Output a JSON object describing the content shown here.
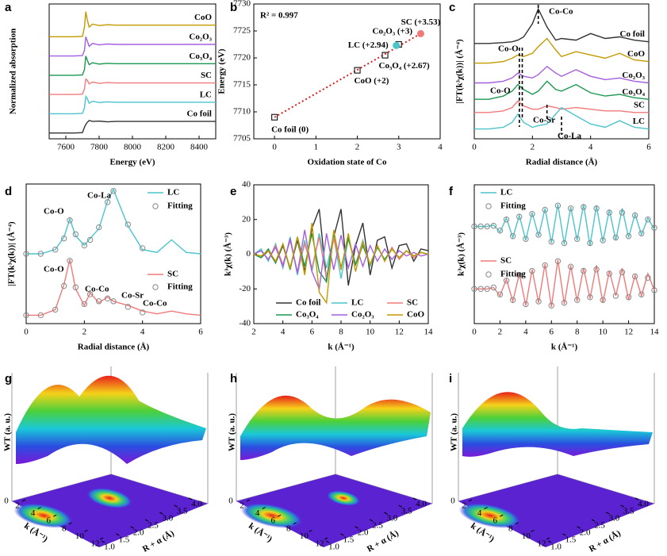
{
  "chart_data": [
    {
      "type": "line",
      "panel": "a",
      "xlabel": "Energy (eV)",
      "ylabel": "Normalized absorption",
      "xlim": [
        7500,
        8500
      ],
      "xticks": [
        7600,
        7800,
        8000,
        8200,
        8400
      ],
      "ylim": [
        0,
        7
      ],
      "legend": "inline",
      "x": [
        7500,
        7650,
        7700,
        7712,
        7720,
        7728,
        7740,
        7760,
        7800,
        7850,
        7900,
        8000,
        8100,
        8200,
        8300,
        8400,
        8500
      ],
      "series": [
        {
          "name": "CoO",
          "color": "#c49a00",
          "values": [
            5.3,
            5.3,
            5.32,
            5.8,
            6.6,
            6.2,
            5.8,
            5.95,
            5.88,
            5.92,
            5.9,
            5.9,
            5.9,
            5.9,
            5.9,
            5.9,
            5.9
          ]
        },
        {
          "name": "Co₂O₃",
          "color": "#a45ee0",
          "values": [
            4.3,
            4.3,
            4.32,
            4.6,
            5.3,
            5.1,
            4.8,
            4.95,
            4.88,
            4.92,
            4.9,
            4.9,
            4.9,
            4.9,
            4.9,
            4.9,
            4.9
          ]
        },
        {
          "name": "Co₃O₄",
          "color": "#1a9850",
          "values": [
            3.3,
            3.3,
            3.32,
            3.6,
            4.3,
            4.1,
            3.85,
            3.95,
            3.88,
            3.92,
            3.9,
            3.9,
            3.9,
            3.9,
            3.9,
            3.9,
            3.9
          ]
        },
        {
          "name": "SC",
          "color": "#f07a7a",
          "values": [
            2.3,
            2.3,
            2.32,
            2.6,
            3.1,
            3.05,
            2.85,
            2.95,
            2.88,
            2.92,
            2.9,
            2.9,
            2.9,
            2.9,
            2.9,
            2.9,
            2.9
          ]
        },
        {
          "name": "LC",
          "color": "#4cc4cc",
          "values": [
            1.3,
            1.3,
            1.32,
            1.6,
            2.2,
            2.1,
            1.85,
            1.95,
            1.88,
            1.92,
            1.9,
            1.9,
            1.9,
            1.9,
            1.9,
            1.9,
            1.9
          ]
        },
        {
          "name": "Co foil",
          "color": "#333333",
          "values": [
            0.3,
            0.3,
            0.32,
            0.6,
            0.75,
            0.85,
            0.95,
            0.9,
            0.92,
            0.88,
            0.9,
            0.9,
            0.9,
            0.9,
            0.9,
            0.9,
            0.9
          ]
        }
      ]
    },
    {
      "type": "scatter",
      "panel": "b",
      "xlabel": "Oxidation state of Co",
      "ylabel": "Energy (eV)",
      "annotation": "R² = 0.997",
      "xlim": [
        -0.5,
        4
      ],
      "xticks": [
        0,
        1,
        2,
        3,
        4
      ],
      "ylim": [
        7705,
        7730
      ],
      "yticks": [
        7705,
        7710,
        7715,
        7720,
        7725,
        7730
      ],
      "x": [
        0,
        2,
        2.67,
        3,
        2.94,
        3.53
      ],
      "values": [
        7709,
        7717.7,
        7720.5,
        7722.5,
        7722.3,
        7724.5
      ],
      "labels": [
        "Co foil (0)",
        "CoO (+2)",
        "Co₃O₄ (+2.67)",
        "Co₂O₃ (+3)",
        "LC (+2.94)",
        "SC (+3.53)"
      ],
      "colors": [
        "#222222",
        "#222222",
        "#222222",
        "#222222",
        "#4cc4cc",
        "#f07a7a"
      ],
      "markers": [
        "square",
        "square",
        "square",
        "square",
        "circle",
        "circle"
      ],
      "fit": {
        "x": [
          0,
          3.53
        ],
        "y": [
          7709,
          7724.5
        ],
        "color": "#d62020"
      }
    },
    {
      "type": "line",
      "panel": "c",
      "xlabel": "Radial distance (Å)",
      "ylabel": "|FT(k³χ(k))| (Å⁻⁴)",
      "xlim": [
        0,
        6
      ],
      "xticks": [
        0,
        2,
        4,
        6
      ],
      "ylim": [
        0,
        8.2
      ],
      "legend": "inline",
      "annotations": [
        "Co-Co",
        "Co-O",
        "Co-O",
        "Co-Sr",
        "Co-La"
      ],
      "x": [
        0,
        0.5,
        1,
        1.3,
        1.5,
        1.7,
        2,
        2.2,
        2.5,
        2.8,
        3,
        3.5,
        4,
        4.5,
        5,
        5.5,
        6
      ],
      "series": [
        {
          "name": "Co foil",
          "color": "#333333",
          "values": [
            5.8,
            5.8,
            5.85,
            5.9,
            6.0,
            6.2,
            7.0,
            7.9,
            6.8,
            6.0,
            6.1,
            6.0,
            6.4,
            6.1,
            6.2,
            6.0,
            5.9
          ]
        },
        {
          "name": "CoO",
          "color": "#c49a00",
          "values": [
            4.6,
            4.6,
            4.7,
            4.9,
            5.1,
            5.0,
            5.2,
            5.6,
            6.1,
            5.4,
            5.0,
            5.3,
            5.1,
            4.9,
            5.2,
            4.8,
            4.7
          ]
        },
        {
          "name": "Co₂O₃",
          "color": "#a45ee0",
          "values": [
            3.4,
            3.4,
            3.5,
            3.7,
            4.0,
            3.8,
            3.7,
            3.9,
            4.4,
            4.0,
            3.8,
            4.2,
            3.8,
            3.6,
            3.7,
            3.5,
            3.4
          ]
        },
        {
          "name": "Co₃O₄",
          "color": "#1a9850",
          "values": [
            2.4,
            2.4,
            2.6,
            2.9,
            3.3,
            3.0,
            2.7,
            2.9,
            3.5,
            3.0,
            2.9,
            3.3,
            2.8,
            2.6,
            2.7,
            2.5,
            2.4
          ]
        },
        {
          "name": "SC",
          "color": "#f07a7a",
          "values": [
            1.6,
            1.6,
            1.7,
            1.9,
            2.3,
            2.0,
            1.8,
            1.8,
            2.0,
            1.9,
            1.8,
            1.9,
            1.8,
            1.7,
            1.7,
            1.6,
            1.6
          ]
        },
        {
          "name": "LC",
          "color": "#4cc4cc",
          "values": [
            0.6,
            0.6,
            0.7,
            1.0,
            1.5,
            1.0,
            0.7,
            0.8,
            0.9,
            1.5,
            1.9,
            1.4,
            0.9,
            0.7,
            1.1,
            0.7,
            0.6
          ]
        }
      ]
    },
    {
      "type": "line",
      "panel": "d",
      "xlabel": "Radial distance (Å)",
      "ylabel": "|FT(k³χ(k))| (Å⁻⁴)",
      "xlim": [
        0,
        6
      ],
      "xticks": [
        0,
        2,
        4,
        6
      ],
      "ylim": [
        0,
        10
      ],
      "legend": "grouped",
      "annotations": [
        "Co-La",
        "Co-O",
        "Co-O",
        "Co-Co",
        "Co-Sr",
        "Co-Co"
      ],
      "x": [
        0,
        0.5,
        1,
        1.3,
        1.5,
        1.7,
        2,
        2.2,
        2.5,
        2.8,
        3,
        3.5,
        4,
        4.5,
        5,
        5.5,
        6
      ],
      "series": [
        {
          "name": "LC",
          "color": "#4cc4cc",
          "style": "line",
          "values": [
            5,
            5,
            5.3,
            6.2,
            7.5,
            6.3,
            5.6,
            6.1,
            6.8,
            8.8,
            9.6,
            7.0,
            5.3,
            5.1,
            6.0,
            5.1,
            5.0
          ]
        },
        {
          "name": "Fitting",
          "color": "#888888",
          "style": "markers",
          "values": [
            5,
            5,
            5.3,
            6.1,
            7.4,
            6.4,
            5.6,
            6.0,
            6.9,
            8.7,
            9.5,
            7.1,
            5.4,
            null,
            null,
            null,
            null
          ]
        },
        {
          "name": "SC",
          "color": "#f07a7a",
          "style": "line",
          "values": [
            0.6,
            0.6,
            1.0,
            2.8,
            4.6,
            2.5,
            1.3,
            2.2,
            1.5,
            1.9,
            1.6,
            1.3,
            0.9,
            0.7,
            0.9,
            0.7,
            0.6
          ]
        },
        {
          "name": "Fitting",
          "color": "#888888",
          "style": "markers",
          "values": [
            0.6,
            0.6,
            1.0,
            2.7,
            4.5,
            2.6,
            1.4,
            2.1,
            1.6,
            1.8,
            1.6,
            1.2,
            0.8,
            null,
            null,
            null,
            null
          ]
        }
      ]
    },
    {
      "type": "line",
      "panel": "e",
      "xlabel": "k (Å⁻¹)",
      "ylabel": "k³χ(k) (Å⁻³)",
      "xlim": [
        2,
        14
      ],
      "xticks": [
        2,
        4,
        6,
        8,
        10,
        12,
        14
      ],
      "ylim": [
        -40,
        40
      ],
      "yticks": [
        -40,
        -20,
        0,
        20,
        40
      ],
      "legend": "bottom",
      "x": [
        2,
        2.5,
        3,
        3.5,
        4,
        4.5,
        5,
        5.5,
        6,
        6.5,
        7,
        7.5,
        8,
        8.5,
        9,
        9.5,
        10,
        10.5,
        11,
        11.5,
        12,
        12.5,
        13,
        13.5,
        14
      ],
      "series": [
        {
          "name": "Co foil",
          "color": "#333333",
          "values": [
            0,
            -2,
            2,
            -5,
            5,
            -8,
            8,
            -10,
            15,
            26,
            -15,
            10,
            26,
            -18,
            5,
            18,
            -12,
            8,
            10,
            -8,
            5,
            6,
            -4,
            3,
            2
          ]
        },
        {
          "name": "LC",
          "color": "#4cc4cc",
          "values": [
            0,
            3,
            -4,
            6,
            -8,
            10,
            -12,
            8,
            -10,
            12,
            -8,
            10,
            -14,
            9,
            -6,
            8,
            -7,
            5,
            -4,
            3,
            -2,
            2,
            -1,
            1,
            0
          ]
        },
        {
          "name": "SC",
          "color": "#f07a7a",
          "values": [
            0,
            2,
            -3,
            5,
            -6,
            8,
            -10,
            6,
            -8,
            10,
            -14,
            9,
            -8,
            10,
            -6,
            7,
            -6,
            5,
            -4,
            4,
            -3,
            2,
            -2,
            1,
            0
          ]
        },
        {
          "name": "Co₃O₄",
          "color": "#1a9850",
          "values": [
            0,
            -2,
            3,
            -5,
            6,
            -9,
            10,
            -7,
            12,
            -10,
            -16,
            13,
            -8,
            9,
            -6,
            5,
            -6,
            4,
            -3,
            3,
            -2,
            2,
            -1,
            1,
            0
          ]
        },
        {
          "name": "Co₂O₃",
          "color": "#a45ee0",
          "values": [
            0,
            2,
            -3,
            4,
            -7,
            9,
            -11,
            14,
            -10,
            -20,
            12,
            -9,
            11,
            -8,
            6,
            -7,
            5,
            -4,
            3,
            -3,
            2,
            -1,
            1,
            -1,
            0
          ]
        },
        {
          "name": "CoO",
          "color": "#c49a00",
          "values": [
            0,
            -1,
            2,
            -4,
            6,
            -8,
            10,
            -12,
            18,
            -22,
            -28,
            14,
            -9,
            12,
            -10,
            7,
            -6,
            5,
            -4,
            3,
            -2,
            2,
            -1,
            1,
            0
          ]
        }
      ]
    },
    {
      "type": "line",
      "panel": "f",
      "xlabel": "k (Å⁻¹)",
      "ylabel": "k³χ(k) (Å⁻³)",
      "xlim": [
        0,
        14
      ],
      "xticks": [
        0,
        2,
        4,
        6,
        8,
        10,
        12,
        14
      ],
      "ylim": [
        0,
        10
      ],
      "legend": "grouped",
      "x": [
        0,
        0.5,
        1,
        1.5,
        2,
        2.5,
        3,
        3.5,
        4,
        4.5,
        5,
        5.5,
        6,
        6.5,
        7,
        7.5,
        8,
        8.5,
        9,
        9.5,
        10,
        10.5,
        11,
        11.5,
        12,
        12.5,
        13,
        13.5,
        14
      ],
      "series": [
        {
          "name": "LC",
          "color": "#4cc4cc",
          "style": "line",
          "values": [
            7,
            7,
            7,
            7.1,
            6.6,
            7.6,
            6.2,
            7.8,
            6.0,
            8.0,
            6.3,
            8.3,
            5.8,
            8.6,
            5.7,
            8.4,
            6.0,
            8.6,
            5.6,
            8.5,
            5.9,
            8.2,
            6.0,
            8.3,
            6.2,
            7.9,
            6.4,
            7.6,
            6.8
          ]
        },
        {
          "name": "Fitting",
          "color": "#888888",
          "style": "markers",
          "values": [
            7,
            7,
            7,
            7.05,
            6.7,
            7.5,
            6.3,
            7.7,
            6.1,
            7.9,
            6.4,
            8.2,
            5.9,
            8.5,
            5.8,
            8.3,
            6.1,
            8.4,
            5.8,
            8.3,
            6.0,
            8.0,
            6.2,
            8.0,
            6.3,
            7.8,
            6.5,
            7.5,
            6.9
          ]
        },
        {
          "name": "SC",
          "color": "#f07a7a",
          "style": "line",
          "values": [
            2.5,
            2.5,
            2.5,
            2.6,
            2.0,
            3.2,
            1.6,
            3.6,
            1.3,
            3.9,
            1.5,
            4.3,
            1.2,
            4.6,
            1.4,
            4.2,
            1.6,
            4.0,
            1.8,
            4.2,
            1.5,
            3.8,
            2.0,
            4.0,
            1.7,
            3.5,
            2.0,
            3.6,
            2.4
          ]
        },
        {
          "name": "Fitting",
          "color": "#888888",
          "style": "markers",
          "values": [
            2.5,
            2.5,
            2.5,
            2.6,
            2.1,
            3.1,
            1.7,
            3.5,
            1.4,
            3.8,
            1.6,
            4.2,
            1.3,
            4.5,
            1.5,
            4.1,
            1.7,
            3.8,
            1.9,
            3.9,
            1.7,
            3.6,
            2.0,
            3.7,
            1.9,
            3.4,
            2.1,
            3.3,
            2.4
          ]
        }
      ]
    },
    {
      "type": "wavelet",
      "panel": "g",
      "zlabel": "WT (a. u.)",
      "xlabel": "k (Å⁻¹)",
      "ylabel": "R + α (Å)",
      "zticks": [
        0
      ],
      "xlim": [
        2,
        12
      ],
      "xticks": [
        2,
        4,
        6,
        8,
        10,
        12
      ],
      "ylim": [
        1,
        4
      ],
      "yticks": [
        {
          "value": 1,
          "label": "1.0"
        },
        {
          "value": 1.5,
          "label": "1.5"
        },
        {
          "value": 2,
          "label": "2.0"
        },
        {
          "value": 2.5,
          "label": "2.5"
        },
        {
          "value": 3,
          "label": "3.0"
        },
        {
          "value": 3.5,
          "label": "3.5"
        },
        {
          "value": 4,
          "label": "4.0"
        }
      ]
    },
    {
      "type": "wavelet",
      "panel": "h",
      "zlabel": "WT (a. u.)",
      "xlabel": "k (Å⁻¹)",
      "ylabel": "R + α (Å)",
      "zticks": [
        0
      ],
      "xlim": [
        2,
        12
      ],
      "xticks": [
        2,
        4,
        6,
        8,
        10,
        12
      ],
      "ylim": [
        1,
        4
      ],
      "yticks": [
        {
          "value": 1,
          "label": "1.0"
        },
        {
          "value": 1.5,
          "label": "1.5"
        },
        {
          "value": 2,
          "label": "2.0"
        },
        {
          "value": 2.5,
          "label": "2.5"
        },
        {
          "value": 3,
          "label": "3.0"
        },
        {
          "value": 3.5,
          "label": "3.5"
        },
        {
          "value": 4,
          "label": "4.0"
        }
      ]
    },
    {
      "type": "wavelet",
      "panel": "i",
      "zlabel": "WT (a. u.)",
      "xlabel": "k (Å⁻¹)",
      "ylabel": "R + α (Å)",
      "zticks": [
        0
      ],
      "xlim": [
        2,
        12
      ],
      "xticks": [
        2,
        4,
        6,
        8,
        10,
        12
      ],
      "ylim": [
        1,
        4
      ],
      "yticks": [
        {
          "value": 1,
          "label": "1.0"
        },
        {
          "value": 1.5,
          "label": "1.5"
        },
        {
          "value": 2,
          "label": "2.0"
        },
        {
          "value": 2.5,
          "label": "2.5"
        },
        {
          "value": 3,
          "label": "3.0"
        },
        {
          "value": 3.5,
          "label": "3.5"
        },
        {
          "value": 4,
          "label": "4.0"
        }
      ]
    }
  ]
}
